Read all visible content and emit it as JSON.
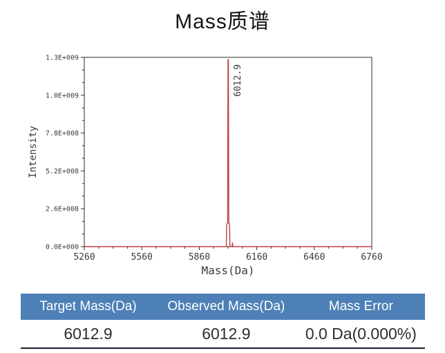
{
  "title": "Mass质谱",
  "chart_data": {
    "type": "line",
    "title": "Mass质谱",
    "xlabel": "Mass(Da)",
    "ylabel": "Intensity",
    "xlim": [
      5260,
      6760
    ],
    "ylim": [
      0,
      1300000000.0
    ],
    "x_ticks": [
      5260,
      5560,
      5860,
      6160,
      6460,
      6760
    ],
    "x_minor_divisions": 4,
    "y_ticks": [
      {
        "value": 0,
        "label": "0.0E+000"
      },
      {
        "value": 260000000.0,
        "label": "2.6E+008"
      },
      {
        "value": 520000000.0,
        "label": "5.2E+008"
      },
      {
        "value": 780000000.0,
        "label": "7.8E+008"
      },
      {
        "value": 1040000000.0,
        "label": "1.0E+009"
      },
      {
        "value": 1300000000.0,
        "label": "1.3E+009"
      }
    ],
    "y_minor_divisions": 3,
    "grid": false,
    "legend": "none",
    "axis_color": "#2a2a2a",
    "text_color": "#3a3a3a",
    "peak_label": "6012.9",
    "peak_mass": 6012.9,
    "peak_intensity": 1285000000.0,
    "series": [
      {
        "name": "mass-spectrum",
        "color": "#c0403e",
        "points": [
          [
            5260,
            0
          ],
          [
            6001,
            0
          ],
          [
            6003,
            155000000
          ],
          [
            6008,
            160000000
          ],
          [
            6010,
            1285000000
          ],
          [
            6012,
            1285000000
          ],
          [
            6014,
            165000000
          ],
          [
            6018,
            150000000
          ],
          [
            6020,
            0
          ],
          [
            6031,
            0
          ],
          [
            6033,
            28000000
          ],
          [
            6035,
            0
          ],
          [
            6760,
            0
          ]
        ]
      }
    ]
  },
  "table": {
    "headers": [
      "Target Mass(Da)",
      "Observed Mass(Da)",
      "Mass Error"
    ],
    "rows": [
      [
        "6012.9",
        "6012.9",
        "0.0 Da(0.000%)"
      ]
    ],
    "header_bg": "#4d80b6",
    "header_text_color": "#ffffff",
    "value_text_color": "#2d2d2d",
    "bottom_border_color": "#191e2b"
  }
}
